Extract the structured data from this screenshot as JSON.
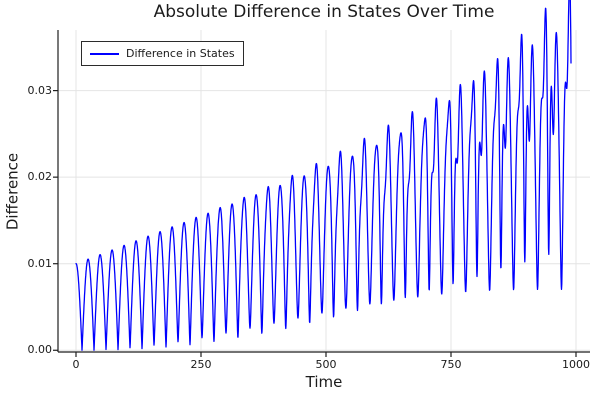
{
  "title": "Absolute Difference in States Over Time",
  "chart_data": {
    "type": "line",
    "title": "Absolute Difference in States Over Time",
    "xlabel": "Time",
    "ylabel": "Difference",
    "xlim": [
      -36,
      1028
    ],
    "ylim": [
      -0.0002,
      0.037
    ],
    "xticks": {
      "values": [
        0,
        250,
        500,
        750,
        1000
      ],
      "labels": [
        "0",
        "250",
        "500",
        "750",
        "1000"
      ]
    },
    "yticks": {
      "values": [
        0,
        0.01,
        0.02,
        0.03
      ],
      "labels": [
        "0.00",
        "0.01",
        "0.02",
        "0.03"
      ]
    },
    "grid": true,
    "grid_color": "#e4e4e4",
    "axis_color": "#1f1f1f",
    "background_color": "#ffffff",
    "legend_position": "top-left",
    "series": [
      {
        "name": "Difference in States",
        "color": "#0000ff",
        "line_width": 1.3,
        "summary": "Rectified oscillation |x1-x2|(t), arch period ~24 time units; envelope grows ~linearly from 0.01 at t=0 to ~0.036 near t=1000; minima touch 0 for t<~400 then rise to ~0.018 by t=1000 with jagged secondary oscillation.",
        "model": {
          "formula": "d(t)=sqrt(main^2+sec^2); main=(a0+a1*t)*cos(w*t); sec=(b2*t^2)*(sin(2*w*t+p1)+c3*sin(f3*w*t+p3))",
          "t_start": 0,
          "t_end": 990,
          "dt": 0.5,
          "w": 0.1309,
          "a0": 0.01,
          "a1": 2.2e-05,
          "b2": 2.5e-08,
          "p1": 0.8,
          "c3": 0.35,
          "f3": 3.02,
          "p3": 0.3
        },
        "key_points": [
          {
            "t": 0,
            "value": 0.01
          },
          {
            "t": 250,
            "peak": 0.016,
            "min": 0.0
          },
          {
            "t": 500,
            "peak": 0.023,
            "min": 0.004
          },
          {
            "t": 750,
            "peak": 0.029,
            "min": 0.012
          },
          {
            "t": 960,
            "peak": 0.036,
            "min": 0.018
          },
          {
            "t": 990,
            "value": 0.019
          }
        ]
      }
    ]
  }
}
